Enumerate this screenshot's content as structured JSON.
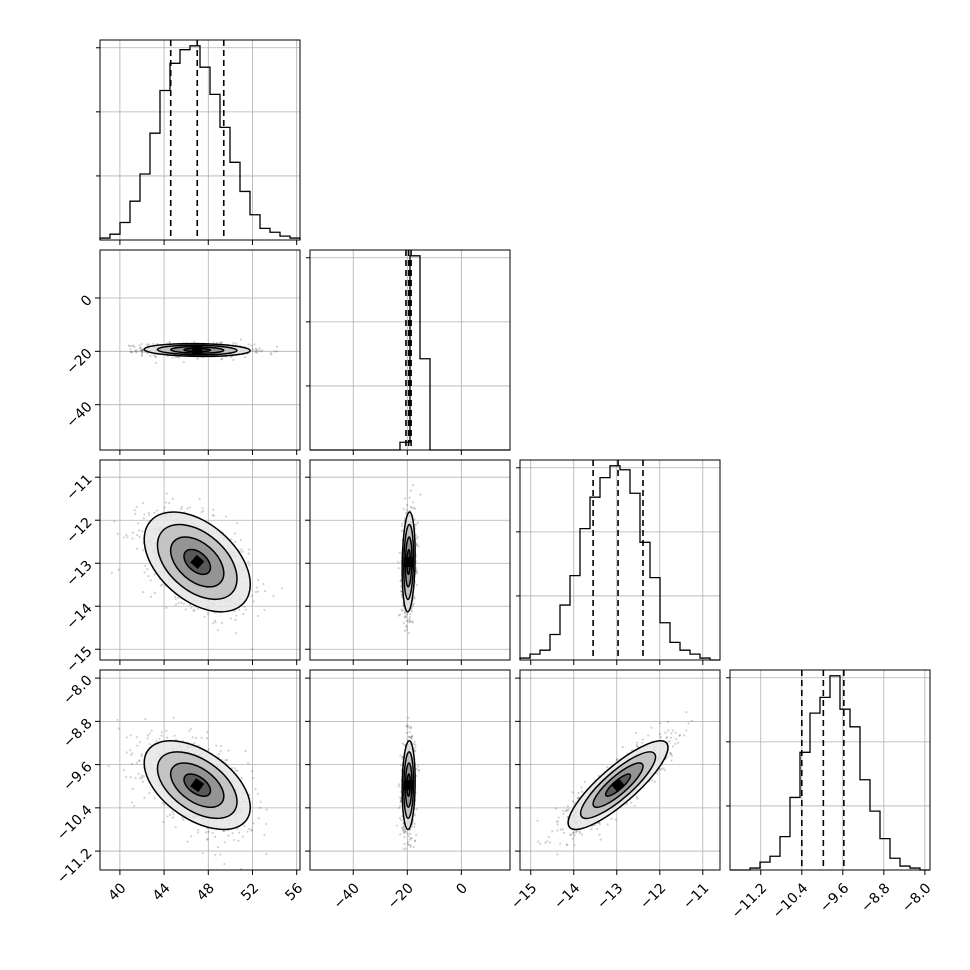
{
  "chart_data": {
    "type": "corner",
    "parameters": [
      {
        "ticks": [
          40,
          44,
          48,
          52,
          56
        ],
        "range": [
          38.2,
          56.3
        ],
        "median": 47.0,
        "quantiles": [
          44.6,
          47.0,
          49.4
        ],
        "hist": {
          "bin_start": 38.2,
          "bin_width": 0.905,
          "counts": [
            0.01,
            0.03,
            0.09,
            0.2,
            0.34,
            0.55,
            0.77,
            0.91,
            0.98,
            1.0,
            0.89,
            0.75,
            0.58,
            0.4,
            0.25,
            0.13,
            0.06,
            0.04,
            0.02,
            0.01
          ]
        }
      },
      {
        "ticks": [
          -40,
          -20,
          0
        ],
        "range": [
          -56,
          18
        ],
        "median": -19.5,
        "quantiles": [
          -20.5,
          -19.5,
          -18.6
        ],
        "hist": {
          "bin_start": -56,
          "bin_width": 3.7,
          "counts": [
            0,
            0,
            0,
            0,
            0,
            0,
            0,
            0,
            0,
            0.04,
            1.0,
            0.47,
            0,
            0,
            0,
            0,
            0,
            0,
            0,
            0
          ]
        }
      },
      {
        "ticks": [
          -15,
          -14,
          -13,
          -12,
          -11
        ],
        "range": [
          -15.25,
          -10.6
        ],
        "median": -12.97,
        "quantiles": [
          -13.55,
          -12.97,
          -12.39
        ],
        "hist": {
          "bin_start": -15.25,
          "bin_width": 0.2325,
          "counts": [
            0.01,
            0.03,
            0.05,
            0.13,
            0.28,
            0.43,
            0.67,
            0.83,
            0.93,
            0.99,
            0.97,
            0.85,
            0.6,
            0.42,
            0.19,
            0.09,
            0.05,
            0.03,
            0.01,
            0.0
          ]
        }
      },
      {
        "ticks": [
          -11.2,
          -10.4,
          -9.6,
          -8.8,
          -8.0
        ],
        "tick_labels": [
          "−11.2",
          "−10.4",
          "−9.6",
          "−8.8",
          "−8.0"
        ],
        "range": [
          -11.8,
          -7.9
        ],
        "median": -9.98,
        "quantiles": [
          -10.4,
          -9.98,
          -9.58
        ],
        "hist": {
          "bin_start": -11.8,
          "bin_width": 0.195,
          "counts": [
            0,
            0,
            0.01,
            0.04,
            0.07,
            0.17,
            0.37,
            0.6,
            0.8,
            0.88,
            0.99,
            0.82,
            0.73,
            0.46,
            0.3,
            0.16,
            0.06,
            0.02,
            0.01,
            0
          ]
        }
      }
    ],
    "y_ranges": [
      null,
      {
        "range": [
          -57,
          18
        ],
        "ticks": [
          -40,
          -20,
          0
        ]
      },
      {
        "range": [
          -15.25,
          -10.6
        ],
        "ticks": [
          -15,
          -14,
          -13,
          -12,
          -11
        ]
      },
      {
        "range": [
          -11.55,
          -7.85
        ],
        "ticks": [
          -11.2,
          -10.4,
          -9.6,
          -8.8,
          -8.0
        ],
        "tick_labels": [
          "−11.2",
          "−10.4",
          "−9.6",
          "−8.8",
          "−8.0"
        ]
      }
    ],
    "correlations": {
      "0-1": -0.1,
      "0-2": -0.45,
      "0-3": -0.5,
      "1-2": 0.15,
      "1-3": 0.1,
      "2-3": 0.85
    },
    "std": [
      2.4,
      1.2,
      0.58,
      0.41
    ],
    "grid": true,
    "contour_levels": [
      0.5,
      1.0,
      1.5,
      2.0
    ]
  }
}
